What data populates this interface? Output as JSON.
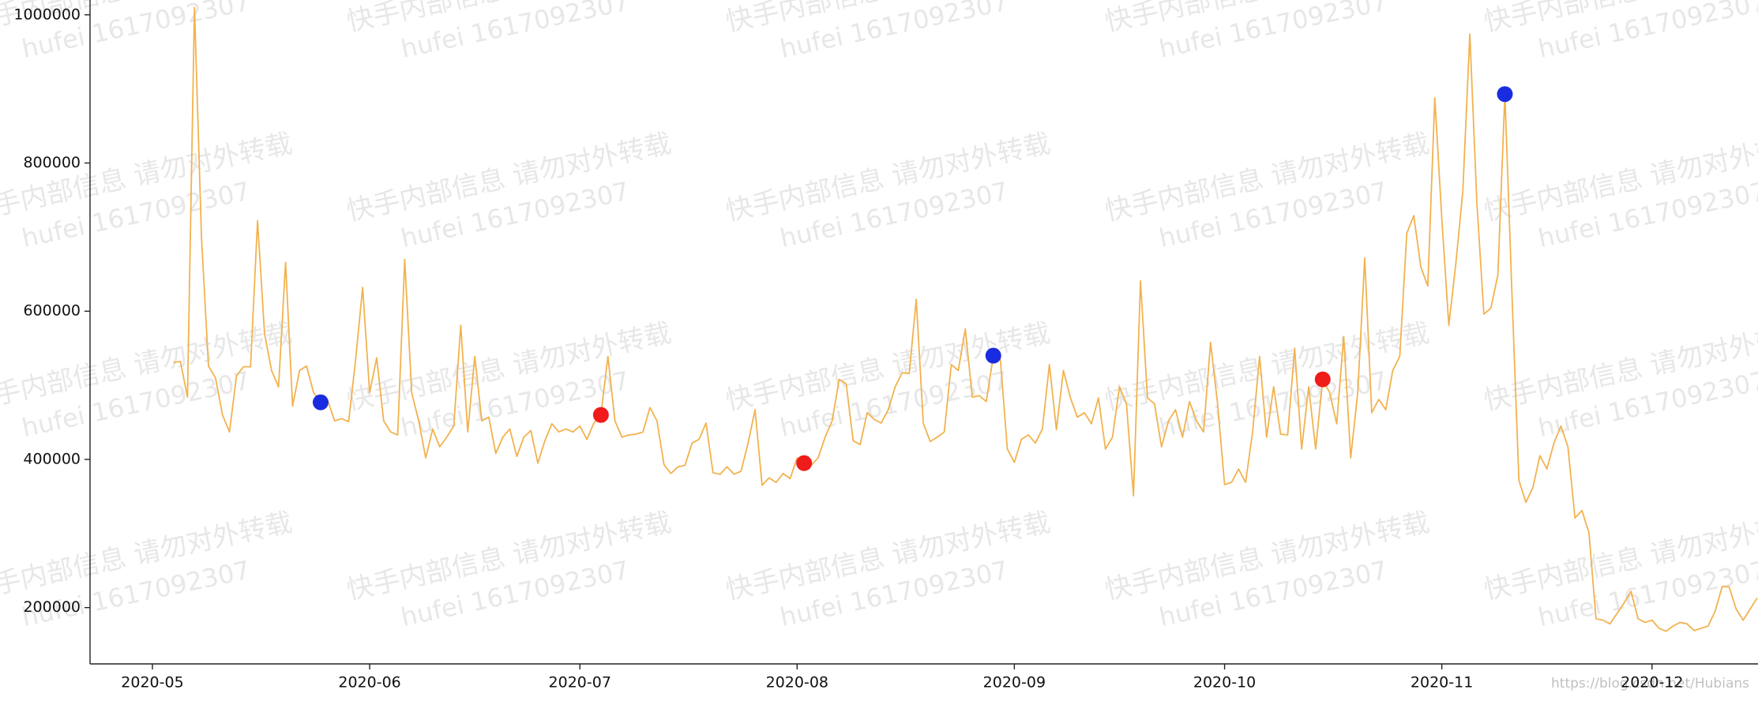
{
  "chart_data": {
    "type": "line",
    "watermark": [
      "快手内部信息 请勿对外转载",
      "hufei 1617092307"
    ],
    "credit": "https://blog.csdn.net/Hubians",
    "categories": [
      "2020-05",
      null,
      null,
      null,
      null,
      null,
      null,
      null,
      null,
      null,
      null,
      null,
      null,
      null,
      null,
      null,
      null,
      null,
      null,
      null,
      null,
      null,
      null,
      null,
      null,
      null,
      null,
      null,
      null,
      null,
      null,
      "2020-06",
      null,
      null,
      null,
      null,
      null,
      null,
      null,
      null,
      null,
      null,
      null,
      null,
      null,
      null,
      null,
      null,
      null,
      null,
      null,
      null,
      null,
      null,
      null,
      null,
      null,
      null,
      null,
      null,
      null,
      "2020-07",
      null,
      null,
      null,
      null,
      null,
      null,
      null,
      null,
      null,
      null,
      null,
      null,
      null,
      null,
      null,
      null,
      null,
      null,
      null,
      null,
      null,
      null,
      null,
      null,
      null,
      null,
      null,
      null,
      null,
      null,
      "2020-08",
      null,
      null,
      null,
      null,
      null,
      null,
      null,
      null,
      null,
      null,
      null,
      null,
      null,
      null,
      null,
      null,
      null,
      null,
      null,
      null,
      null,
      null,
      null,
      null,
      null,
      null,
      null,
      null,
      null,
      null,
      "2020-09",
      null,
      null,
      null,
      null,
      null,
      null,
      null,
      null,
      null,
      null,
      null,
      null,
      null,
      null,
      null,
      null,
      null,
      null,
      null,
      null,
      null,
      null,
      null,
      null,
      null,
      null,
      null,
      null,
      null,
      "2020-10",
      null,
      null,
      null,
      null,
      null,
      null,
      null,
      null,
      null,
      null,
      null,
      null,
      null,
      null,
      null,
      null,
      null,
      null,
      null,
      null,
      null,
      null,
      null,
      null,
      null,
      null,
      null,
      null,
      null,
      null,
      "2020-11",
      null,
      null,
      null,
      null,
      null,
      null,
      null,
      null,
      null,
      null,
      null,
      null,
      null,
      null,
      null,
      null,
      null,
      null,
      null,
      null,
      null,
      null,
      null,
      null,
      null,
      null,
      null,
      null,
      null,
      "2020-12",
      null,
      null,
      null,
      null,
      null,
      null,
      null,
      null,
      null,
      null,
      null,
      null,
      null,
      null,
      null
    ],
    "series": [
      {
        "type": "line",
        "color": "#f2b24e",
        "values": [
          null,
          null,
          null,
          531000,
          532000,
          484000,
          1010000,
          700000,
          526000,
          510000,
          460000,
          437000,
          513000,
          525000,
          525000,
          722000,
          570000,
          520000,
          498000,
          666000,
          472000,
          520000,
          526000,
          490000,
          477000,
          480000,
          452000,
          455000,
          451000,
          535000,
          632000,
          490000,
          537000,
          452000,
          437000,
          433000,
          670000,
          490000,
          452000,
          402000,
          441000,
          417000,
          430000,
          445000,
          581000,
          437000,
          539000,
          452000,
          457000,
          408000,
          430000,
          441000,
          404000,
          430000,
          439000,
          395000,
          425000,
          448000,
          437000,
          441000,
          437000,
          445000,
          427000,
          449000,
          460000,
          539000,
          452000,
          430000,
          433000,
          434000,
          437000,
          470000,
          452000,
          393000,
          381000,
          390000,
          392000,
          422000,
          427000,
          449000,
          382000,
          380000,
          390000,
          380000,
          384000,
          422000,
          467000,
          365000,
          375000,
          369000,
          381000,
          374000,
          402000,
          395000,
          392000,
          402000,
          430000,
          452000,
          508000,
          502000,
          425000,
          420000,
          463000,
          454000,
          449000,
          467000,
          498000,
          517000,
          516000,
          616000,
          449000,
          424000,
          430000,
          437000,
          528000,
          520000,
          576000,
          484000,
          486000,
          478000,
          540000,
          535000,
          414000,
          396000,
          427000,
          433000,
          422000,
          441000,
          528000,
          440000,
          520000,
          483000,
          457000,
          463000,
          448000,
          483000,
          414000,
          430000,
          498000,
          475000,
          351000,
          641000,
          483000,
          475000,
          417000,
          452000,
          467000,
          430000,
          478000,
          452000,
          437000,
          558000,
          475000,
          366000,
          369000,
          387000,
          369000,
          437000,
          539000,
          430000,
          498000,
          434000,
          433000,
          550000,
          414000,
          498000,
          414000,
          508000,
          490000,
          448000,
          566000,
          402000,
          490000,
          672000,
          463000,
          481000,
          467000,
          520000,
          539000,
          705000,
          729000,
          660000,
          634000,
          888000,
          725000,
          581000,
          664000,
          762000,
          974000,
          747000,
          596000,
          604000,
          649000,
          893000,
          626000,
          372000,
          342000,
          362000,
          405000,
          387000,
          422000,
          445000,
          417000,
          321000,
          331000,
          301000,
          185000,
          183000,
          178000,
          192000,
          206000,
          222000,
          185000,
          180000,
          183000,
          172000,
          168000,
          175000,
          180000,
          178000,
          169000,
          172000,
          175000,
          195000,
          228000,
          228000,
          198000,
          183000,
          198000,
          213000
        ]
      },
      {
        "type": "scatter",
        "color": "#f01c1c",
        "values": [
          null,
          null,
          null,
          null,
          null,
          null,
          null,
          null,
          null,
          null,
          null,
          null,
          null,
          null,
          null,
          null,
          null,
          null,
          null,
          null,
          null,
          null,
          null,
          null,
          null,
          null,
          null,
          null,
          null,
          null,
          null,
          null,
          null,
          null,
          null,
          null,
          null,
          null,
          null,
          null,
          null,
          null,
          null,
          null,
          null,
          null,
          null,
          null,
          null,
          null,
          null,
          null,
          null,
          null,
          null,
          null,
          null,
          null,
          null,
          null,
          null,
          null,
          null,
          null,
          460000,
          null,
          null,
          null,
          null,
          null,
          null,
          null,
          null,
          null,
          null,
          null,
          null,
          null,
          null,
          null,
          null,
          null,
          null,
          null,
          null,
          null,
          null,
          null,
          null,
          null,
          null,
          null,
          null,
          395000,
          null,
          null,
          null,
          null,
          null,
          null,
          null,
          null,
          null,
          null,
          null,
          null,
          null,
          null,
          null,
          null,
          null,
          null,
          null,
          null,
          null,
          null,
          null,
          null,
          null,
          null,
          null,
          null,
          null,
          null,
          null,
          null,
          null,
          null,
          null,
          null,
          null,
          null,
          null,
          null,
          null,
          null,
          null,
          null,
          null,
          null,
          null,
          null,
          null,
          null,
          null,
          null,
          null,
          null,
          null,
          null,
          null,
          null,
          null,
          null,
          null,
          null,
          null,
          null,
          null,
          null,
          null,
          null,
          null,
          null,
          null,
          null,
          null,
          508000,
          null,
          null,
          null,
          null,
          null,
          null,
          null,
          null,
          null,
          null,
          null,
          null,
          null,
          null,
          null,
          null,
          null,
          null,
          null,
          null,
          null,
          null,
          null,
          null,
          null,
          null,
          null,
          null,
          null,
          null,
          null,
          null,
          null,
          null,
          null,
          null,
          null,
          null,
          null,
          null,
          null,
          null,
          null,
          null,
          null,
          null,
          null,
          null,
          null,
          null,
          null,
          null,
          null,
          null,
          null,
          null,
          null,
          null,
          null,
          null,
          null,
          null
        ]
      },
      {
        "type": "scatter",
        "color": "#1a2ce0",
        "values": [
          null,
          null,
          null,
          null,
          null,
          null,
          null,
          null,
          null,
          null,
          null,
          null,
          null,
          null,
          null,
          null,
          null,
          null,
          null,
          null,
          null,
          null,
          null,
          null,
          477000,
          null,
          null,
          null,
          null,
          null,
          null,
          null,
          null,
          null,
          null,
          null,
          null,
          null,
          null,
          null,
          null,
          null,
          null,
          null,
          null,
          null,
          null,
          null,
          null,
          null,
          null,
          null,
          null,
          null,
          null,
          null,
          null,
          null,
          null,
          null,
          null,
          null,
          null,
          null,
          null,
          null,
          null,
          null,
          null,
          null,
          null,
          null,
          null,
          null,
          null,
          null,
          null,
          null,
          null,
          null,
          null,
          null,
          null,
          null,
          null,
          null,
          null,
          null,
          null,
          null,
          null,
          null,
          null,
          null,
          null,
          null,
          null,
          null,
          null,
          null,
          null,
          null,
          null,
          null,
          null,
          null,
          null,
          null,
          null,
          null,
          null,
          null,
          null,
          null,
          null,
          null,
          null,
          null,
          null,
          null,
          540000,
          null,
          null,
          null,
          null,
          null,
          null,
          null,
          null,
          null,
          null,
          null,
          null,
          null,
          null,
          null,
          null,
          null,
          null,
          null,
          null,
          null,
          null,
          null,
          null,
          null,
          null,
          null,
          null,
          null,
          null,
          null,
          null,
          null,
          null,
          null,
          null,
          null,
          null,
          null,
          null,
          null,
          null,
          null,
          null,
          null,
          null,
          null,
          null,
          null,
          null,
          null,
          null,
          null,
          null,
          null,
          null,
          null,
          null,
          null,
          null,
          null,
          null,
          null,
          null,
          null,
          null,
          null,
          null,
          null,
          null,
          null,
          null,
          893000,
          null,
          null,
          null,
          null,
          null,
          null,
          null,
          null,
          null,
          null,
          null,
          null,
          null,
          null,
          null,
          null,
          null,
          null,
          null,
          null,
          null,
          null,
          null,
          null,
          null,
          null,
          null,
          null,
          null,
          null,
          null,
          null,
          null,
          null,
          null,
          null
        ]
      }
    ],
    "ylim": [
      124000,
      1020000
    ],
    "yticks": [
      200000,
      400000,
      600000,
      800000,
      1000000
    ],
    "grid": false
  }
}
